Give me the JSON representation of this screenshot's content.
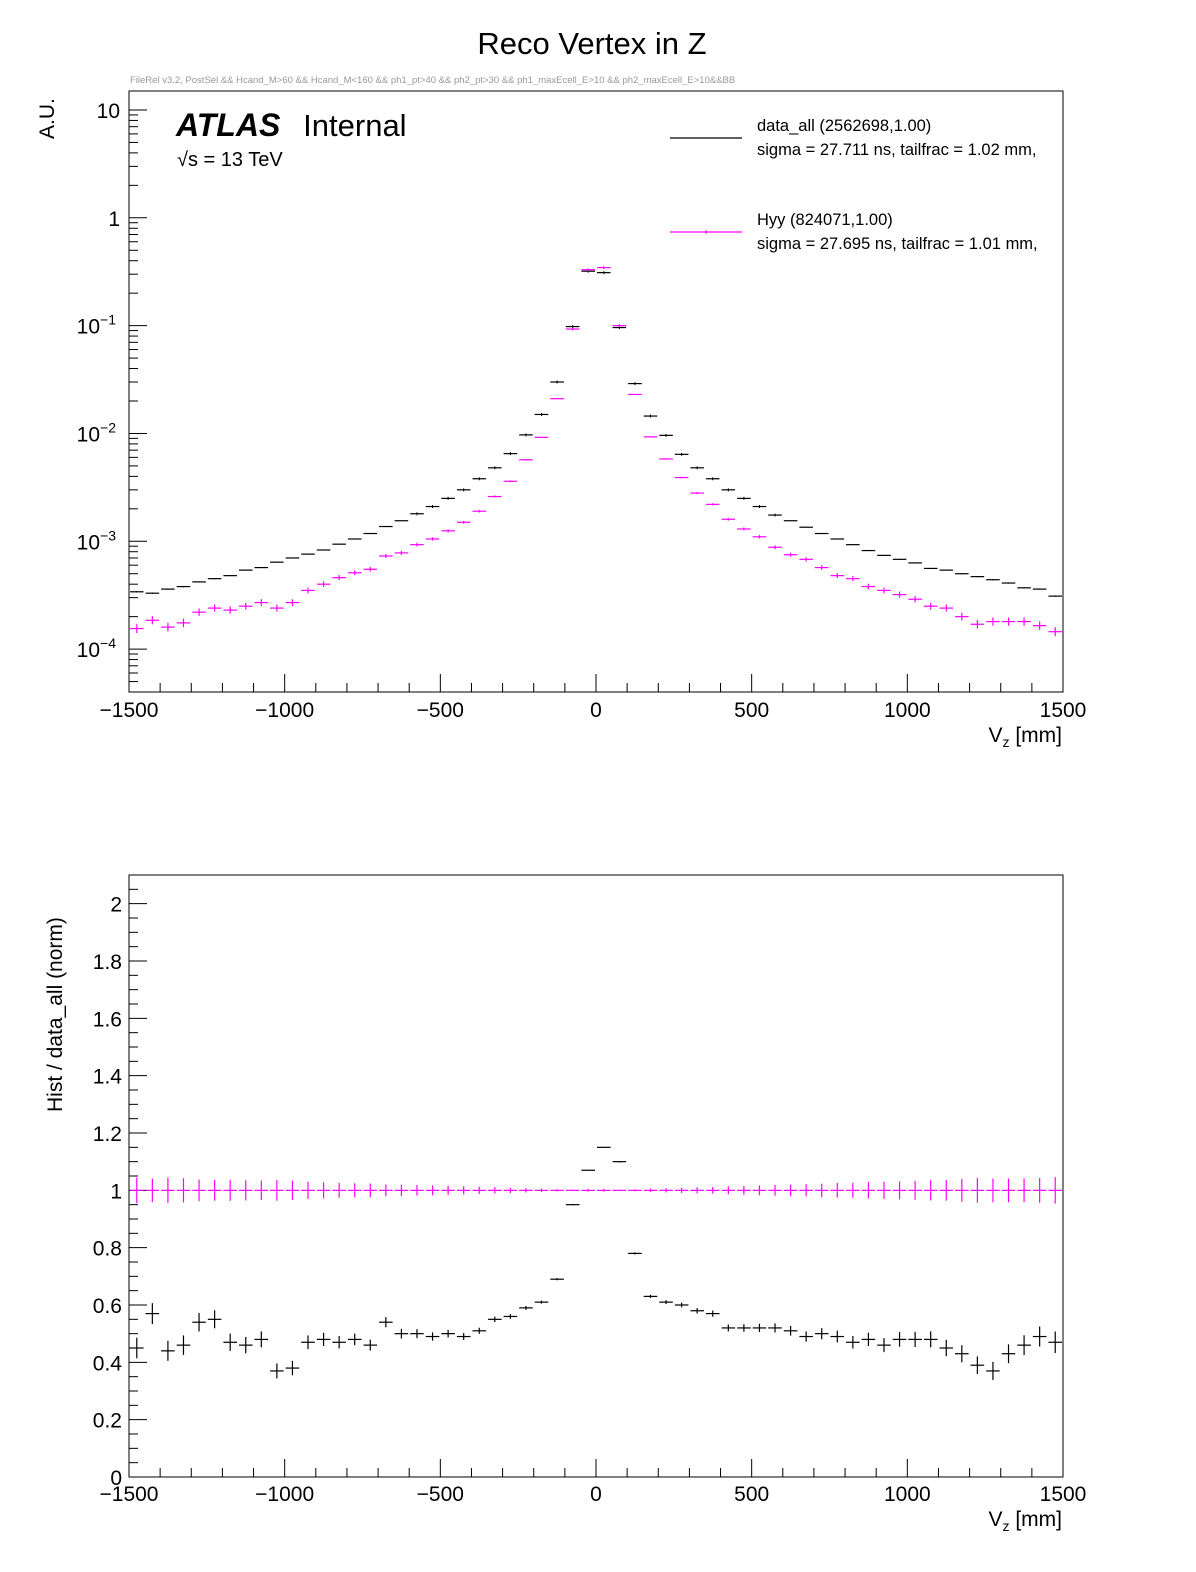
{
  "title": "Reco Vertex in Z",
  "subtitle": "FileRel v3.2, PostSel && Hcand_M>60 && Hcand_M<160 && ph1_pt>40 && ph2_pt>30 && ph1_maxEcell_E>10 && ph2_maxEcell_E>10&&BB",
  "atlas": {
    "bold": "ATLAS",
    "rest": "Internal",
    "energy": "√s = 13 TeV"
  },
  "colors": {
    "data_all": "#000000",
    "hyy": "#ff00ff",
    "subtitle": "#999999",
    "frame": "#000000"
  },
  "legend": [
    {
      "name": "data_all  (2562698,1.00)",
      "detail": "sigma = 27.711 ns, tailfrac = 1.02 mm,"
    },
    {
      "name": "Hyy  (824071,1.00)",
      "detail": "sigma = 27.695 ns, tailfrac = 1.01 mm,"
    }
  ],
  "top_ylabel": "A.U.",
  "bottom_ylabel": "Hist / data_all  (norm)",
  "xlabel_main": "V",
  "xlabel_sub": "z",
  "xlabel_unit": " [mm]",
  "x_ticks": [
    "−1500",
    "−1000",
    "−500",
    "0",
    "500",
    "1000",
    "1500"
  ],
  "top_y_ticks": [
    "10",
    "1",
    "10",
    "10",
    "10",
    "10"
  ],
  "top_y_tick_exps": [
    "",
    "",
    "−1",
    "−2",
    "−3",
    "−4"
  ],
  "bottom_y_ticks": [
    "0",
    "0.2",
    "0.4",
    "0.6",
    "0.8",
    "1",
    "1.2",
    "1.4",
    "1.6",
    "1.8",
    "2"
  ],
  "chart_data": [
    {
      "type": "scatter",
      "name": "top",
      "title": "Reco Vertex in Z",
      "ylabel": "A.U.",
      "xlim": [
        -1500,
        1500
      ],
      "ylim": [
        4e-05,
        15
      ],
      "log_y": true,
      "grid": false,
      "legend_position": "top-right",
      "x": [
        -1475,
        -1425,
        -1375,
        -1325,
        -1275,
        -1225,
        -1175,
        -1125,
        -1075,
        -1025,
        -975,
        -925,
        -875,
        -825,
        -775,
        -725,
        -675,
        -625,
        -575,
        -525,
        -475,
        -425,
        -375,
        -325,
        -275,
        -225,
        -175,
        -125,
        -75,
        -25,
        25,
        75,
        125,
        175,
        225,
        275,
        325,
        375,
        425,
        475,
        525,
        575,
        625,
        675,
        725,
        775,
        825,
        875,
        925,
        975,
        1025,
        1075,
        1125,
        1175,
        1225,
        1275,
        1325,
        1375,
        1425,
        1475
      ],
      "series": [
        {
          "name": "data_all  (2562698,1.00)",
          "values": [
            0.00034,
            0.00033,
            0.00036,
            0.00038,
            0.00042,
            0.00045,
            0.00048,
            0.00054,
            0.00057,
            0.00064,
            0.0007,
            0.00076,
            0.00083,
            0.00094,
            0.00105,
            0.00118,
            0.00137,
            0.00155,
            0.0018,
            0.0021,
            0.0025,
            0.003,
            0.0038,
            0.0048,
            0.0065,
            0.0097,
            0.015,
            0.03,
            0.098,
            0.32,
            0.31,
            0.096,
            0.029,
            0.0145,
            0.0096,
            0.0064,
            0.0048,
            0.0038,
            0.003,
            0.0025,
            0.0021,
            0.00175,
            0.00155,
            0.00135,
            0.00118,
            0.00105,
            0.00093,
            0.00082,
            0.00074,
            0.00068,
            0.00063,
            0.00056,
            0.00054,
            0.0005,
            0.00047,
            0.00044,
            0.00041,
            0.00037,
            0.00036,
            0.00031
          ]
        },
        {
          "name": "Hyy  (824071,1.00)",
          "values": [
            0.000155,
            0.000185,
            0.00016,
            0.000175,
            0.00022,
            0.00024,
            0.00023,
            0.00025,
            0.00027,
            0.00024,
            0.00027,
            0.00035,
            0.0004,
            0.00046,
            0.00051,
            0.00055,
            0.00073,
            0.00078,
            0.00093,
            0.00105,
            0.00125,
            0.0015,
            0.0019,
            0.0026,
            0.0036,
            0.0057,
            0.0092,
            0.021,
            0.093,
            0.33,
            0.345,
            0.1,
            0.023,
            0.0093,
            0.0058,
            0.0039,
            0.0028,
            0.0022,
            0.0016,
            0.0013,
            0.0011,
            0.00088,
            0.00075,
            0.00068,
            0.00057,
            0.00048,
            0.00045,
            0.00038,
            0.00035,
            0.00032,
            0.00029,
            0.00025,
            0.00024,
            0.0002,
            0.00017,
            0.00018,
            0.00018,
            0.00018,
            0.000165,
            0.000145
          ]
        }
      ]
    },
    {
      "type": "scatter",
      "name": "ratio",
      "ylabel": "Hist / data_all  (norm)",
      "xlabel": "Vz [mm]",
      "xlim": [
        -1500,
        1500
      ],
      "ylim": [
        0,
        2.1
      ],
      "grid": false,
      "x": [
        -1475,
        -1425,
        -1375,
        -1325,
        -1275,
        -1225,
        -1175,
        -1125,
        -1075,
        -1025,
        -975,
        -925,
        -875,
        -825,
        -775,
        -725,
        -675,
        -625,
        -575,
        -525,
        -475,
        -425,
        -375,
        -325,
        -275,
        -225,
        -175,
        -125,
        -75,
        -25,
        25,
        75,
        125,
        175,
        225,
        275,
        325,
        375,
        425,
        475,
        525,
        575,
        625,
        675,
        725,
        775,
        825,
        875,
        925,
        975,
        1025,
        1075,
        1125,
        1175,
        1225,
        1275,
        1325,
        1375,
        1425,
        1475
      ],
      "series": [
        {
          "name": "Hyy  (824071,1.00)",
          "values": [
            0.45,
            0.57,
            0.44,
            0.46,
            0.54,
            0.55,
            0.47,
            0.46,
            0.48,
            0.37,
            0.38,
            0.47,
            0.48,
            0.47,
            0.48,
            0.46,
            0.54,
            0.5,
            0.5,
            0.49,
            0.5,
            0.49,
            0.51,
            0.55,
            0.56,
            0.59,
            0.61,
            0.69,
            0.95,
            1.07,
            1.15,
            1.1,
            0.78,
            0.63,
            0.61,
            0.6,
            0.58,
            0.57,
            0.52,
            0.52,
            0.52,
            0.52,
            0.51,
            0.49,
            0.5,
            0.49,
            0.47,
            0.48,
            0.46,
            0.48,
            0.48,
            0.48,
            0.45,
            0.43,
            0.39,
            0.37,
            0.43,
            0.46,
            0.49,
            0.47
          ]
        },
        {
          "name": "data_all  (2562698,1.00)",
          "values": [
            1,
            1,
            1,
            1,
            1,
            1,
            1,
            1,
            1,
            1,
            1,
            1,
            1,
            1,
            1,
            1,
            1,
            1,
            1,
            1,
            1,
            1,
            1,
            1,
            1,
            1,
            1,
            1,
            1,
            1,
            1,
            1,
            1,
            1,
            1,
            1,
            1,
            1,
            1,
            1,
            1,
            1,
            1,
            1,
            1,
            1,
            1,
            1,
            1,
            1,
            1,
            1,
            1,
            1,
            1,
            1,
            1,
            1,
            1,
            1
          ]
        }
      ]
    }
  ]
}
